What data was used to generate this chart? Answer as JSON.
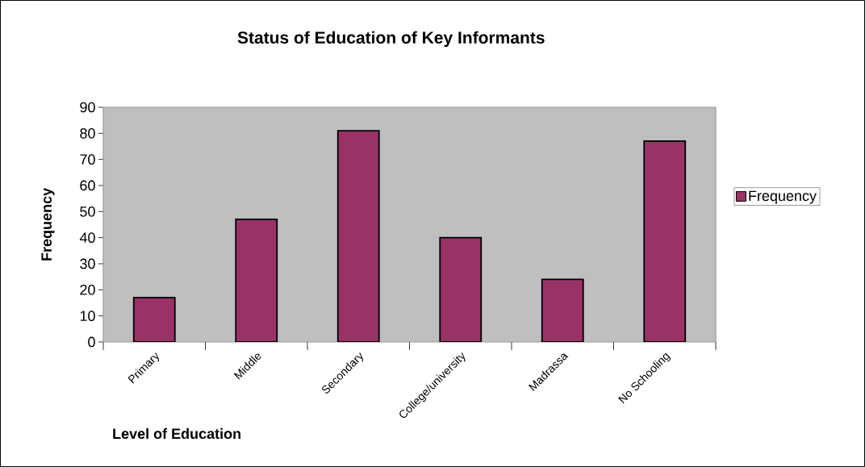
{
  "chart_data": {
    "type": "bar",
    "title": "Status of Education of Key Informants",
    "xlabel": "Level of Education",
    "ylabel": "Frequency",
    "categories": [
      "Primary",
      "Middle",
      "Secondary",
      "College/university",
      "Madrassa",
      "No Schooling"
    ],
    "series": [
      {
        "name": "Frequency",
        "color": "#993366",
        "values": [
          17,
          47,
          81,
          40,
          24,
          77
        ]
      }
    ],
    "ylim": [
      0,
      90
    ],
    "yticks": [
      0,
      10,
      20,
      30,
      40,
      50,
      60,
      70,
      80,
      90
    ],
    "legend": "right"
  }
}
